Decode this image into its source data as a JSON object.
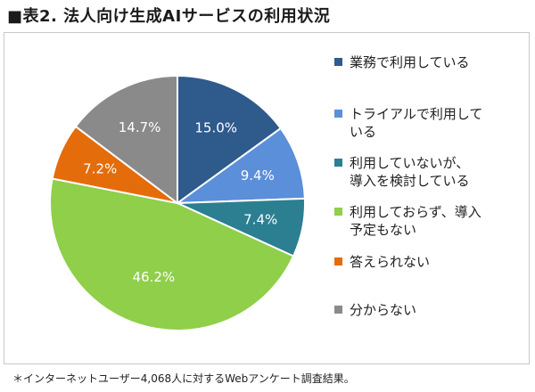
{
  "title": "■表2. 法人向け生成AIサービスの利用状況",
  "footnote": "＊インターネットユーザー4,068人に対するWebアンケート調査結果。",
  "chart_data": {
    "type": "pie",
    "start": "12 o'clock",
    "direction": "clockwise",
    "slices": [
      {
        "label": "業務で利用している",
        "value": 15.0,
        "display": "15.0%",
        "color": "#2e5a8c"
      },
      {
        "label": "トライアルで利用している",
        "value": 9.4,
        "display": "9.4%",
        "color": "#5b8fd9"
      },
      {
        "label": "利用していないが、導入を検討している",
        "value": 7.4,
        "display": "7.4%",
        "color": "#2b7f91"
      },
      {
        "label": "利用しておらず、導入予定もない",
        "value": 46.2,
        "display": "46.2%",
        "color": "#8fcf4a"
      },
      {
        "label": "答えられない",
        "value": 7.2,
        "display": "7.2%",
        "color": "#e46c0a"
      },
      {
        "label": "分からない",
        "value": 14.7,
        "display": "14.7%",
        "color": "#8a8a8a"
      }
    ],
    "legend": {
      "placement": "right",
      "lines": [
        [
          "業務で利用している"
        ],
        [
          "トライアルで利用して",
          "いる"
        ],
        [
          "利用していないが、",
          "導入を検討している"
        ],
        [
          "利用しておらず、導入",
          "予定もない"
        ],
        [
          "答えられない"
        ],
        [
          "分からない"
        ]
      ]
    }
  }
}
